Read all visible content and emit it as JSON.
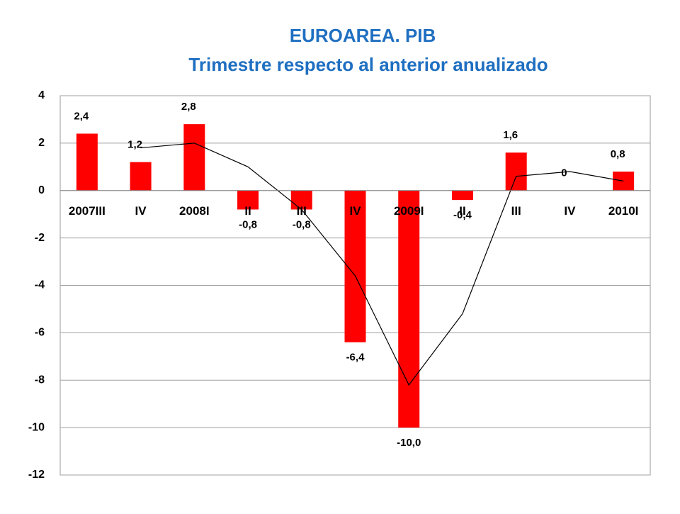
{
  "chart_data": {
    "type": "bar",
    "title": "EUROAREA.  PIB",
    "subtitle": "Trimestre respecto al anterior anualizado",
    "categories": [
      "2007III",
      "IV",
      "2008I",
      "II",
      "III",
      "IV",
      "2009I",
      "II",
      "III",
      "IV",
      "2010I"
    ],
    "series": [
      {
        "type": "bar",
        "color": "#ff0000",
        "values": [
          2.4,
          1.2,
          2.8,
          -0.8,
          -0.8,
          -6.4,
          -10.0,
          -0.4,
          1.6,
          0,
          0.8
        ],
        "value_labels": [
          "2,4",
          "1,2",
          "2,8",
          "-0,8",
          "-0,8",
          "-6,4",
          "-10,0",
          "-0,4",
          "1,6",
          "0",
          "0,8"
        ]
      },
      {
        "type": "line",
        "color": "#000000",
        "values": [
          null,
          1.8,
          2.0,
          1.0,
          -0.8,
          -3.6,
          -8.2,
          -5.2,
          0.6,
          0.8,
          0.4
        ]
      }
    ],
    "ylim": [
      -12,
      4
    ],
    "yticks": [
      -12,
      -10,
      -8,
      -6,
      -4,
      -2,
      0,
      2,
      4
    ],
    "grid": true
  }
}
